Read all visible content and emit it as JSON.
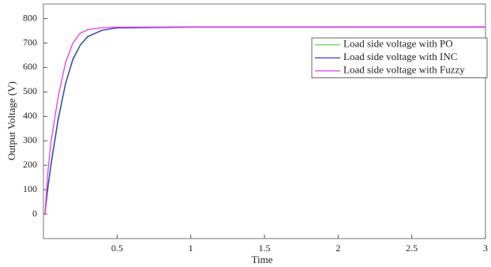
{
  "chart_data": {
    "type": "line",
    "xlabel": "Time",
    "ylabel": "Output Voltage (V)",
    "x": [
      0,
      0.01,
      0.03,
      0.05,
      0.1,
      0.15,
      0.2,
      0.25,
      0.3,
      0.4,
      0.5,
      1,
      1.5,
      2,
      2.5,
      3
    ],
    "series": [
      {
        "name": "Load side voltage with PO",
        "color": "#5fd35f",
        "values": [
          0,
          0,
          100,
          190,
          380,
          530,
          630,
          690,
          725,
          752,
          762,
          765,
          765,
          765,
          765,
          765
        ]
      },
      {
        "name": "Load side voltage with INC",
        "color": "#3a3ad0",
        "values": [
          0,
          0,
          110,
          200,
          390,
          535,
          635,
          692,
          727,
          753,
          762,
          765,
          765,
          765,
          765,
          765
        ]
      },
      {
        "name": "Load side voltage with Fuzzy",
        "color": "#ee3aee",
        "values": [
          0,
          0,
          170,
          290,
          480,
          620,
          700,
          740,
          755,
          763,
          765,
          766,
          766,
          766,
          766,
          766
        ]
      }
    ],
    "xlim": [
      0,
      3
    ],
    "xticks": [
      0.5,
      1,
      1.5,
      2,
      2.5,
      3
    ],
    "ylim": [
      -100,
      860
    ],
    "yticks": [
      0,
      100,
      200,
      300,
      400,
      500,
      600,
      700,
      800
    ],
    "legend": "upper right",
    "grid": false
  }
}
